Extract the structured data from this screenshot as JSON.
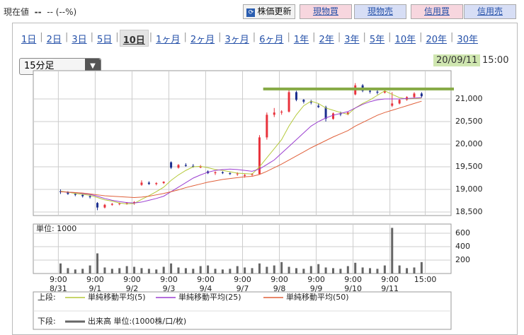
{
  "header": {
    "current_label": "現在値",
    "price": "--",
    "change": "-- (--%)"
  },
  "buttons": [
    {
      "label": "株価更新",
      "kind": "refresh"
    },
    {
      "label": "現物買",
      "kind": "buy"
    },
    {
      "label": "現物売",
      "kind": "sell"
    },
    {
      "label": "信用買",
      "kind": "buy"
    },
    {
      "label": "信用売",
      "kind": "sell"
    }
  ],
  "tabs": {
    "items": [
      "1日",
      "2日",
      "3日",
      "5日",
      "10日",
      "1ヶ月",
      "2ヶ月",
      "3ヶ月",
      "6ヶ月",
      "1年",
      "2年",
      "3年",
      "5年",
      "10年",
      "20年",
      "30年"
    ],
    "selected": 4
  },
  "chart_controls": {
    "interval": "15分足",
    "date": "20/09/11",
    "time": "15:00"
  },
  "chart_data": [
    {
      "type": "candlestick",
      "xlim": [
        -3.4,
        53.3
      ],
      "ylim": [
        18422,
        21625
      ],
      "yticks": [
        {
          "value": 18500,
          "label": "18,500"
        },
        {
          "value": 19000,
          "label": "19,000"
        },
        {
          "value": 19500,
          "label": "19,500"
        },
        {
          "value": 20000,
          "label": "20,000"
        },
        {
          "value": 20500,
          "label": "20,500"
        },
        {
          "value": 21000,
          "label": "21,000"
        }
      ],
      "xticks": [
        {
          "value": 0,
          "label": "9:00",
          "date": "8/31"
        },
        {
          "value": 5,
          "label": "9:00",
          "date": "9/1"
        },
        {
          "value": 10,
          "label": "9:00",
          "date": "9/2"
        },
        {
          "value": 15,
          "label": "9:00",
          "date": "9/3"
        },
        {
          "value": 20,
          "label": "9:00",
          "date": "9/4"
        },
        {
          "value": 25,
          "label": "9:00",
          "date": "9/7"
        },
        {
          "value": 30,
          "label": "9:00",
          "date": "9/8"
        },
        {
          "value": 35,
          "label": "9:00",
          "date": "9/9"
        },
        {
          "value": 40,
          "label": "9:00",
          "date": "9/10"
        },
        {
          "value": 45,
          "label": "9:00",
          "date": "9/11"
        },
        {
          "value": 49.8,
          "label": "15:00"
        }
      ],
      "grid": true,
      "up_color": "#e8323c",
      "down_color": "#1c2f8f",
      "ohlc": [
        [
          18960,
          19000,
          18900,
          18940
        ],
        [
          18940,
          18960,
          18880,
          18900
        ],
        [
          18900,
          18920,
          18850,
          18880
        ],
        [
          18880,
          18900,
          18820,
          18850
        ],
        [
          18850,
          18880,
          18800,
          18830
        ],
        [
          18700,
          18720,
          18540,
          18600
        ],
        [
          18600,
          18680,
          18580,
          18660
        ],
        [
          18660,
          18700,
          18640,
          18680
        ],
        [
          18680,
          18710,
          18650,
          18690
        ],
        [
          18690,
          18720,
          18660,
          18700
        ],
        [
          18700,
          18740,
          18660,
          18720
        ],
        [
          19100,
          19200,
          19080,
          19150
        ],
        [
          19150,
          19180,
          19100,
          19120
        ],
        [
          19120,
          19160,
          19090,
          19140
        ],
        [
          19140,
          19180,
          19120,
          19170
        ],
        [
          19600,
          19620,
          19450,
          19480
        ],
        [
          19480,
          19560,
          19460,
          19540
        ],
        [
          19540,
          19580,
          19500,
          19520
        ],
        [
          19520,
          19560,
          19480,
          19500
        ],
        [
          19500,
          19540,
          19470,
          19500
        ],
        [
          19400,
          19420,
          19340,
          19360
        ],
        [
          19360,
          19400,
          19320,
          19380
        ],
        [
          19380,
          19400,
          19340,
          19360
        ],
        [
          19360,
          19380,
          19320,
          19340
        ],
        [
          19340,
          19380,
          19300,
          19350
        ],
        [
          19300,
          19340,
          19260,
          19320
        ],
        [
          19320,
          19360,
          19300,
          19340
        ],
        [
          19340,
          20200,
          19330,
          20150
        ],
        [
          20150,
          20700,
          20100,
          20650
        ],
        [
          20650,
          20800,
          20600,
          20700
        ],
        [
          20700,
          20750,
          20650,
          20720
        ],
        [
          20720,
          21200,
          20700,
          21150
        ],
        [
          21150,
          21180,
          20950,
          20980
        ],
        [
          20980,
          21000,
          20900,
          20940
        ],
        [
          20940,
          20980,
          20880,
          20920
        ],
        [
          20850,
          20900,
          20800,
          20820
        ],
        [
          20820,
          20850,
          20500,
          20560
        ],
        [
          20560,
          20700,
          20540,
          20680
        ],
        [
          20680,
          20720,
          20620,
          20660
        ],
        [
          20660,
          20720,
          20640,
          20700
        ],
        [
          21100,
          21350,
          21080,
          21300
        ],
        [
          21300,
          21330,
          21150,
          21180
        ],
        [
          21180,
          21220,
          21120,
          21160
        ],
        [
          21160,
          21200,
          21100,
          21140
        ],
        [
          21140,
          21200,
          21120,
          21170
        ],
        [
          20850,
          21150,
          20820,
          20900
        ],
        [
          20900,
          21000,
          20880,
          20980
        ],
        [
          20980,
          21060,
          20960,
          21040
        ],
        [
          21040,
          21150,
          21020,
          21120
        ],
        [
          21120,
          21150,
          21030,
          21060
        ]
      ],
      "series": [
        {
          "name": "単純移動平均(5)",
          "color": "#b5c93a",
          "values": [
            18960,
            18940,
            18910,
            18890,
            18870,
            18820,
            18770,
            18740,
            18700,
            18680,
            18690,
            18780,
            18860,
            18950,
            19050,
            19200,
            19320,
            19420,
            19500,
            19510,
            19480,
            19440,
            19420,
            19390,
            19360,
            19350,
            19340,
            19500,
            19700,
            19900,
            20100,
            20400,
            20650,
            20850,
            20950,
            20900,
            20800,
            20750,
            20700,
            20660,
            20800,
            20900,
            20980,
            21080,
            21180,
            21100,
            21030,
            21000,
            21010,
            21020
          ]
        },
        {
          "name": "単純移動平均(25)",
          "color": "#9b3fd0",
          "values": [
            18950,
            18940,
            18930,
            18910,
            18890,
            18850,
            18800,
            18760,
            18730,
            18710,
            18700,
            18720,
            18760,
            18800,
            18850,
            18950,
            19050,
            19150,
            19250,
            19320,
            19380,
            19420,
            19440,
            19450,
            19440,
            19420,
            19400,
            19450,
            19550,
            19650,
            19800,
            19950,
            20100,
            20250,
            20400,
            20500,
            20580,
            20640,
            20680,
            20720,
            20800,
            20880,
            20940,
            20980,
            21000,
            21000,
            21000,
            21010,
            21020,
            21030
          ]
        },
        {
          "name": "単純移動平均(50)",
          "color": "#e0603a",
          "values": [
            18950,
            18940,
            18930,
            18920,
            18900,
            18880,
            18860,
            18850,
            18840,
            18830,
            18820,
            18830,
            18850,
            18880,
            18910,
            18950,
            18990,
            19040,
            19080,
            19120,
            19160,
            19190,
            19220,
            19240,
            19260,
            19280,
            19290,
            19330,
            19400,
            19480,
            19560,
            19650,
            19740,
            19830,
            19920,
            20000,
            20080,
            20160,
            20230,
            20300,
            20400,
            20480,
            20560,
            20640,
            20700,
            20750,
            20800,
            20850,
            20900,
            20950
          ]
        }
      ],
      "hline": {
        "value": 21220,
        "color": "#86aa45"
      }
    },
    {
      "type": "volume",
      "unit_label": "単位: 1000",
      "name": "出来高 単位:(1000株/口/枚)",
      "color": "#666666",
      "ylim": [
        0,
        737
      ],
      "yticks": [
        200,
        400,
        600
      ],
      "values": [
        150,
        80,
        60,
        70,
        120,
        300,
        90,
        70,
        80,
        110,
        100,
        80,
        70,
        60,
        100,
        150,
        90,
        80,
        70,
        110,
        120,
        70,
        60,
        70,
        110,
        90,
        80,
        150,
        100,
        120,
        170,
        100,
        80,
        70,
        110,
        140,
        90,
        80,
        70,
        110,
        160,
        90,
        80,
        70,
        120,
        680,
        120,
        80,
        90,
        170
      ]
    }
  ],
  "legend": {
    "upper": "上段:",
    "lower": "下段:"
  }
}
